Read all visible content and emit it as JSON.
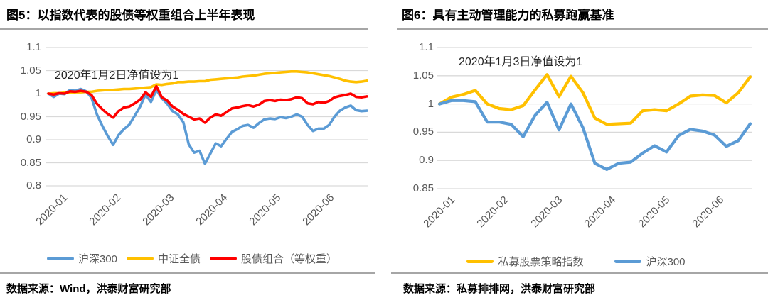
{
  "style": {
    "gridline_color": "#D9D9D9",
    "axis_text_color": "#595959",
    "rule_color": "#A6A6A6",
    "blue": "#5B9BD5",
    "gold": "#FFC000",
    "red": "#FF0000"
  },
  "chart_data": [
    {
      "type": "line",
      "title": "图5：以指数代表的股债等权重组合上半年表现",
      "annotation": "2020年1月2日净值设为1",
      "source": "数据来源：Wind，洪泰财富研究部",
      "xlabel": "",
      "ylabel": "",
      "ylim": [
        0.8,
        1.1
      ],
      "grid": true,
      "legend_position": "bottom",
      "x_tick_labels": [
        "2020-01",
        "2020-02",
        "2020-03",
        "2020-04",
        "2020-05",
        "2020-06"
      ],
      "y_tick_labels": [
        "1.1",
        "1.05",
        "1",
        "0.95",
        "0.9",
        "0.85",
        "0.8"
      ],
      "y_tick_values": [
        1.1,
        1.05,
        1.0,
        0.95,
        0.9,
        0.85,
        0.8
      ],
      "series": [
        {
          "name": "沪深300",
          "color": "#5B9BD5",
          "values": [
            1.0,
            0.993,
            1.0,
            0.999,
            1.008,
            1.006,
            1.01,
            1.005,
            0.991,
            0.955,
            0.93,
            0.908,
            0.889,
            0.91,
            0.923,
            0.933,
            0.952,
            0.972,
            0.998,
            0.982,
            1.008,
            0.99,
            0.978,
            0.962,
            0.955,
            0.938,
            0.89,
            0.872,
            0.876,
            0.848,
            0.87,
            0.892,
            0.886,
            0.902,
            0.917,
            0.923,
            0.93,
            0.932,
            0.926,
            0.936,
            0.944,
            0.946,
            0.945,
            0.949,
            0.947,
            0.95,
            0.955,
            0.95,
            0.932,
            0.919,
            0.924,
            0.924,
            0.932,
            0.95,
            0.963,
            0.97,
            0.974,
            0.964,
            0.962,
            0.963
          ]
        },
        {
          "name": "中证全债",
          "color": "#FFC000",
          "values": [
            1.0,
            1.001,
            1.001,
            1.002,
            1.002,
            1.003,
            1.003,
            1.004,
            1.004,
            1.006,
            1.007,
            1.008,
            1.008,
            1.009,
            1.01,
            1.01,
            1.011,
            1.012,
            1.013,
            1.014,
            1.02,
            1.019,
            1.021,
            1.022,
            1.025,
            1.025,
            1.026,
            1.026,
            1.027,
            1.027,
            1.03,
            1.031,
            1.032,
            1.033,
            1.034,
            1.035,
            1.037,
            1.038,
            1.039,
            1.041,
            1.043,
            1.044,
            1.045,
            1.046,
            1.047,
            1.048,
            1.048,
            1.047,
            1.046,
            1.044,
            1.042,
            1.04,
            1.038,
            1.035,
            1.032,
            1.028,
            1.026,
            1.025,
            1.026,
            1.028
          ]
        },
        {
          "name": "股债组合（等权重）",
          "color": "#FF0000",
          "values": [
            1.0,
            0.998,
            1.001,
            1.0,
            1.005,
            1.004,
            1.006,
            1.004,
            0.997,
            0.978,
            0.966,
            0.956,
            0.948,
            0.962,
            0.97,
            0.972,
            0.979,
            0.987,
            1.003,
            0.993,
            1.016,
            0.992,
            0.985,
            0.972,
            0.965,
            0.956,
            0.95,
            0.944,
            0.946,
            0.937,
            0.948,
            0.955,
            0.952,
            0.96,
            0.968,
            0.97,
            0.973,
            0.975,
            0.972,
            0.976,
            0.984,
            0.986,
            0.984,
            0.987,
            0.986,
            0.988,
            0.992,
            0.99,
            0.979,
            0.977,
            0.982,
            0.98,
            0.984,
            0.992,
            0.995,
            0.997,
            1.0,
            0.993,
            0.992,
            0.994
          ]
        }
      ]
    },
    {
      "type": "line",
      "title": "图6：具有主动管理能力的私募跑赢基准",
      "annotation": "2020年1月3日净值设为1",
      "source": "数据来源：私募排排网，洪泰财富研究部",
      "xlabel": "",
      "ylabel": "",
      "ylim": [
        0.85,
        1.1
      ],
      "grid": true,
      "legend_position": "bottom",
      "x_tick_labels": [
        "2020-01",
        "2020-02",
        "2020-03",
        "2020-04",
        "2020-05",
        "2020-06"
      ],
      "y_tick_labels": [
        "1.1",
        "1.05",
        "1",
        "0.95",
        "0.9",
        "0.85"
      ],
      "y_tick_values": [
        1.1,
        1.05,
        1.0,
        0.95,
        0.9,
        0.85
      ],
      "series": [
        {
          "name": "私募股票策略指数",
          "color": "#FFC000",
          "values": [
            1.0,
            1.012,
            1.017,
            1.024,
            1.0,
            0.992,
            0.99,
            0.997,
            1.025,
            1.052,
            1.013,
            1.049,
            1.02,
            0.975,
            0.964,
            0.965,
            0.966,
            0.988,
            0.99,
            0.988,
            1.0,
            1.014,
            1.016,
            1.015,
            1.002,
            1.02,
            1.048
          ]
        },
        {
          "name": "沪深300",
          "color": "#5B9BD5",
          "values": [
            1.0,
            1.006,
            1.006,
            1.004,
            0.968,
            0.968,
            0.964,
            0.942,
            0.98,
            1.003,
            0.954,
            1.0,
            0.958,
            0.895,
            0.884,
            0.895,
            0.897,
            0.913,
            0.926,
            0.915,
            0.944,
            0.955,
            0.952,
            0.945,
            0.925,
            0.935,
            0.965
          ]
        }
      ]
    }
  ]
}
